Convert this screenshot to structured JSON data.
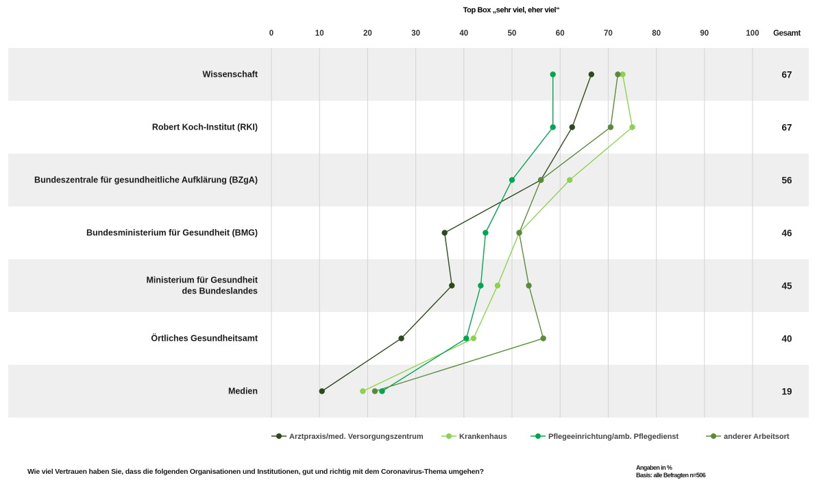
{
  "chart_data": {
    "type": "line",
    "title": "Top Box „sehr viel, eher viel“",
    "xlim": [
      0,
      100
    ],
    "x_ticks": [
      "0",
      "10",
      "20",
      "30",
      "40",
      "50",
      "60",
      "70",
      "80",
      "90",
      "100"
    ],
    "grid": true,
    "legend_position": "bottom-right",
    "total_header": "Gesamt",
    "categories": [
      "Wissenschaft",
      "Robert Koch-Institut (RKI)",
      "Bundeszentrale für gesundheitliche Aufklärung (BZgA)",
      "Bundesministerium für Gesundheit (BMG)",
      "Ministerium für Gesundheit\ndes Bundeslandes",
      "Örtliches Gesundheitsamt",
      "Medien"
    ],
    "totals": [
      "67",
      "67",
      "56",
      "46",
      "45",
      "40",
      "19"
    ],
    "series": [
      {
        "name": "Arztpraxis/med. Versorgungszentrum",
        "color": "#2d4a1e",
        "values": [
          66.5,
          62.5,
          56,
          36,
          37.5,
          27,
          10.5
        ]
      },
      {
        "name": "Krankenhaus",
        "color": "#8fd14f",
        "values": [
          73,
          75,
          62,
          51.5,
          47,
          42,
          19
        ]
      },
      {
        "name": "Pflegeeinrichtung/amb. Pflegedienst",
        "color": "#00a651",
        "values": [
          58.5,
          58.5,
          50,
          44.5,
          43.5,
          40.5,
          23
        ]
      },
      {
        "name": "anderer Arbeitsort",
        "color": "#5a8a3a",
        "values": [
          72,
          70.5,
          56,
          51.5,
          53.5,
          56.5,
          21.5
        ]
      }
    ]
  },
  "footnote": "Wie viel Vertrauen haben Sie, dass die folgenden Organisationen und Institutionen, gut und richtig mit dem Coronavirus-Thema umgehen?",
  "basis": [
    "Angaben in %",
    "Basis: alle Befragten n=506"
  ]
}
